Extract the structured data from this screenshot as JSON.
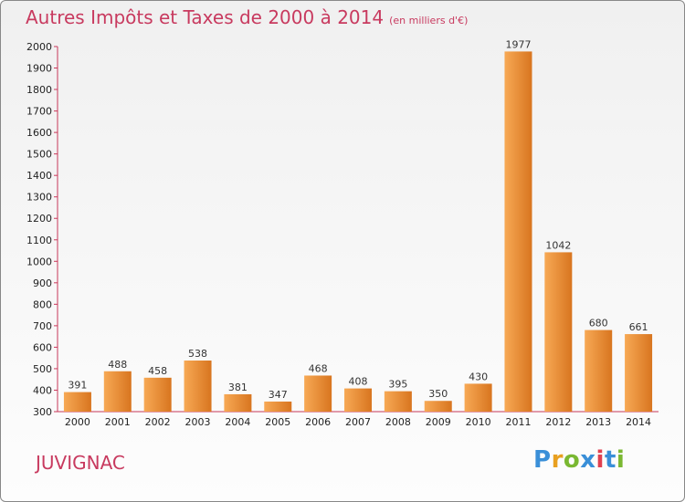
{
  "title": "Autres Impôts et Taxes de 2000 à 2014",
  "subtitle": "(en milliers d'€)",
  "commune": "JUVIGNAC",
  "logo": {
    "letters": [
      {
        "ch": "P",
        "color": "#3a8fd8"
      },
      {
        "ch": "r",
        "color": "#e8a020"
      },
      {
        "ch": "o",
        "color": "#7ab832"
      },
      {
        "ch": "x",
        "color": "#3a8fd8"
      },
      {
        "ch": "i",
        "color": "#e04050"
      },
      {
        "ch": "t",
        "color": "#3a8fd8"
      },
      {
        "ch": "i",
        "color": "#7ab832"
      }
    ]
  },
  "colors": {
    "bar_light": "#f7a955",
    "bar_dark": "#d8751f",
    "title": "#c83a5f",
    "axis": "#c8385a"
  },
  "chart_data": {
    "type": "bar",
    "categories": [
      "2000",
      "2001",
      "2002",
      "2003",
      "2004",
      "2005",
      "2006",
      "2007",
      "2008",
      "2009",
      "2010",
      "2011",
      "2012",
      "2013",
      "2014"
    ],
    "values": [
      391,
      488,
      458,
      538,
      381,
      347,
      468,
      408,
      395,
      350,
      430,
      1977,
      1042,
      680,
      661
    ],
    "ylim": [
      300,
      2000
    ],
    "yticks": [
      300,
      400,
      500,
      600,
      700,
      800,
      900,
      1000,
      1100,
      1200,
      1300,
      1400,
      1500,
      1600,
      1700,
      1800,
      1900,
      2000
    ],
    "grid": false,
    "legend": "none"
  }
}
